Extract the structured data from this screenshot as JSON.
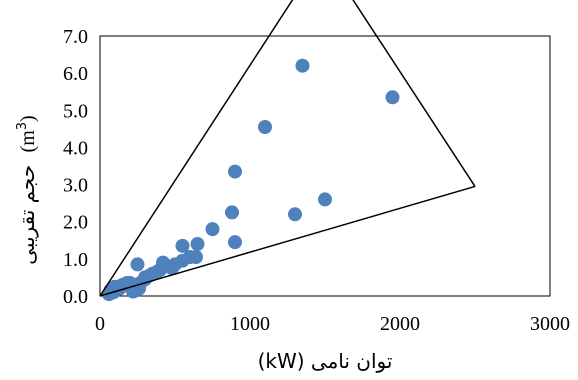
{
  "chart_data": {
    "type": "scatter",
    "xlabel": "توان نامی (kW)",
    "ylabel_text": "حجم تقریبی",
    "ylabel_unit": "(m",
    "ylabel_unit_sup": "3",
    "ylabel_unit_close": ")",
    "xlim": [
      0,
      3000
    ],
    "ylim": [
      0,
      7
    ],
    "x_ticks": [
      0,
      1000,
      2000,
      3000
    ],
    "x_tick_labels": [
      "0",
      "1000",
      "2000",
      "3000"
    ],
    "y_ticks": [
      0,
      1,
      2,
      3,
      4,
      5,
      6,
      7
    ],
    "y_tick_labels": [
      "0.0",
      "1.0",
      "2.0",
      "3.0",
      "4.0",
      "5.0",
      "6.0",
      "7.0"
    ],
    "grid": false,
    "legend": "none",
    "marker_color": "#4f81bd",
    "series": [
      {
        "x": [
          1350,
          1950,
          1100,
          900,
          880,
          1500,
          1300,
          900,
          750,
          550,
          650,
          640,
          550,
          450,
          400,
          350,
          300,
          250,
          200,
          150,
          100,
          70,
          420,
          480,
          380,
          330,
          300,
          270,
          260,
          240,
          220,
          180,
          130,
          90,
          60,
          500,
          600
        ],
        "y": [
          6.2,
          5.35,
          4.55,
          3.35,
          2.25,
          2.6,
          2.2,
          1.45,
          1.8,
          1.35,
          1.4,
          1.05,
          0.95,
          0.8,
          0.7,
          0.6,
          0.5,
          0.85,
          0.35,
          0.3,
          0.25,
          0.15,
          0.9,
          0.75,
          0.65,
          0.55,
          0.45,
          0.35,
          0.2,
          0.15,
          0.12,
          0.35,
          0.2,
          0.1,
          0.05,
          0.85,
          1.05
        ]
      }
    ],
    "envelope": {
      "upper_x": [
        0,
        1320
      ],
      "upper_y": [
        0,
        8.2
      ],
      "right_x": [
        1650,
        2500
      ],
      "right_y": [
        8.2,
        2.95
      ],
      "lower_x": [
        0,
        2500
      ],
      "lower_y": [
        0,
        2.95
      ]
    }
  }
}
